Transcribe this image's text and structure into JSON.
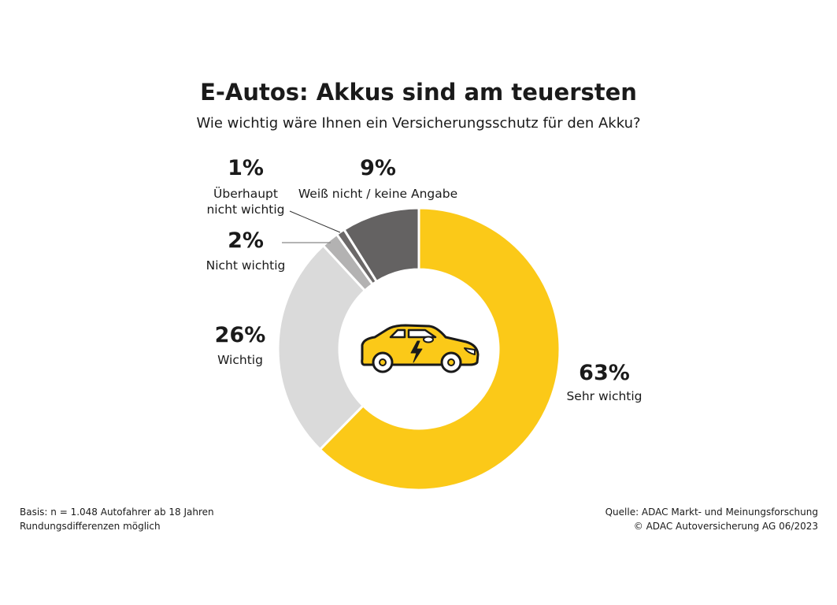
{
  "colors": {
    "sehr_wichtig": "#FBC918",
    "wichtig": "#DADADA",
    "nicht_wichtig": "#B3B2B2",
    "ueberhaupt_nicht": "#6B6868",
    "weiss_nicht": "#646262"
  },
  "chart_data": {
    "type": "pie",
    "variant": "donut",
    "title": "E-Autos: Akkus sind am teuersten",
    "subtitle": "Wie wichtig wäre Ihnen ein Versicherungsschutz für den Akku?",
    "slices": [
      {
        "label": "Sehr wichtig",
        "value": 63,
        "display": "63%"
      },
      {
        "label": "Wichtig",
        "value": 26,
        "display": "26%"
      },
      {
        "label": "Nicht wichtig",
        "value": 2,
        "display": "2%"
      },
      {
        "label": "Überhaupt nicht wichtig",
        "label_lines": [
          "Überhaupt",
          "nicht wichtig"
        ],
        "value": 1,
        "display": "1%"
      },
      {
        "label": "Weiß nicht / keine Angabe",
        "value": 9,
        "display": "9%"
      }
    ],
    "start": "top",
    "direction": "clockwise",
    "center_icon": "electric-car-icon"
  },
  "footer": {
    "basis": "Basis: n = 1.048 Autofahrer ab 18 Jahren",
    "rounding": "Rundungsdifferenzen möglich",
    "source": "Quelle: ADAC Markt- und Meinungsforschung",
    "copyright": "© ADAC Autoversicherung AG 06/2023"
  }
}
